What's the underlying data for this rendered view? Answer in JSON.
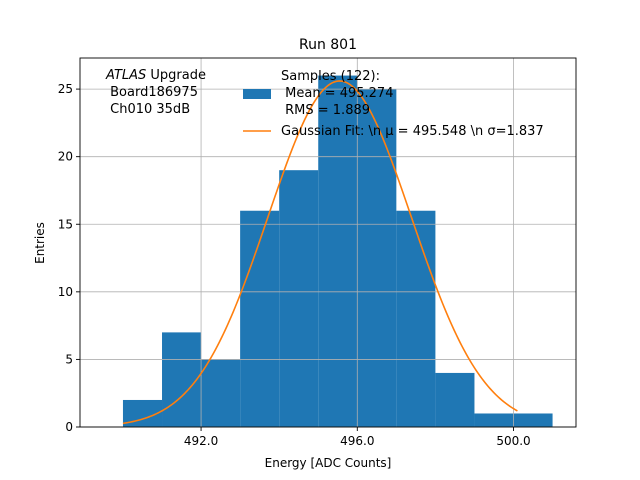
{
  "chart_data": {
    "type": "bar",
    "title": "Run 801",
    "xlabel": "Energy [ADC Counts]",
    "ylabel": "Entries",
    "xlim": [
      488.9,
      501.6
    ],
    "ylim": [
      0,
      27.3
    ],
    "grid": true,
    "x_ticks": [
      492,
      496,
      500
    ],
    "x_tick_labels": [
      "492.0",
      "496.0",
      "500.0"
    ],
    "y_ticks": [
      0,
      5,
      10,
      15,
      20,
      25
    ],
    "y_tick_labels": [
      "0",
      "5",
      "10",
      "15",
      "20",
      "25"
    ],
    "bins": [
      {
        "left": 490,
        "right": 491,
        "count": 2
      },
      {
        "left": 491,
        "right": 492,
        "count": 7
      },
      {
        "left": 492,
        "right": 493,
        "count": 5
      },
      {
        "left": 493,
        "right": 494,
        "count": 16
      },
      {
        "left": 494,
        "right": 495,
        "count": 19
      },
      {
        "left": 495,
        "right": 496,
        "count": 26
      },
      {
        "left": 496,
        "right": 497,
        "count": 25
      },
      {
        "left": 497,
        "right": 498,
        "count": 16
      },
      {
        "left": 498,
        "right": 499,
        "count": 4
      },
      {
        "left": 499,
        "right": 500,
        "count": 1
      },
      {
        "left": 500,
        "right": 501,
        "count": 1
      }
    ],
    "fit": {
      "mu": 495.548,
      "sigma": 1.837,
      "amplitude": 25.6,
      "x_range": [
        490,
        500.1
      ]
    },
    "annotation": {
      "line1_italic": "ATLAS",
      "line1_rest": " Upgrade",
      "line2": " Board186975",
      "line3": " Ch010 35dB"
    },
    "legend": {
      "placement": "top-center",
      "hist_lines": [
        "Samples (122):",
        " Mean = 495.274",
        " RMS = 1.889"
      ],
      "fit_label": "Gaussian Fit: \\n μ = 495.548 \\n σ=1.837"
    },
    "colors": {
      "bar": "#1f77b4",
      "fit": "#ff7f0e",
      "grid": "#b0b0b0"
    }
  }
}
